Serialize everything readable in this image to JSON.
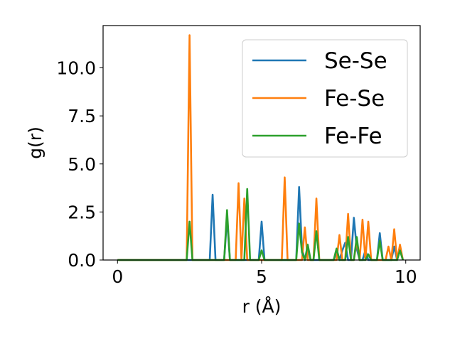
{
  "chart_data": {
    "type": "line",
    "title": "",
    "xlabel": "r (Å)",
    "ylabel": "g(r)",
    "xlim": [
      -0.5,
      10.5
    ],
    "ylim": [
      0.0,
      12.2
    ],
    "xticks": [
      0,
      5,
      10
    ],
    "xtick_labels": [
      "0",
      "5",
      "10"
    ],
    "yticks": [
      0.0,
      2.5,
      5.0,
      7.5,
      10.0
    ],
    "ytick_labels": [
      "0.0",
      "2.5",
      "5.0",
      "7.5",
      "10.0"
    ],
    "grid": false,
    "legend_position": "top-right",
    "series": [
      {
        "name": "Se-Se",
        "color": "#1f77b4",
        "x": [
          0,
          3.2,
          3.3,
          3.4,
          3.7,
          3.8,
          3.9,
          4.9,
          5.0,
          5.1,
          6.2,
          6.3,
          6.4,
          6.5,
          6.6,
          6.7,
          7.5,
          7.6,
          7.7,
          7.8,
          7.9,
          8.0,
          8.1,
          8.2,
          8.3,
          8.4,
          8.5,
          8.6,
          8.7,
          8.8,
          9.0,
          9.1,
          9.2,
          9.5,
          9.6,
          9.7,
          9.8,
          9.9
        ],
        "y": [
          0,
          0,
          3.4,
          0,
          0,
          2.2,
          0,
          0,
          2.0,
          0,
          0,
          3.8,
          0.6,
          0,
          0.6,
          0,
          0,
          0.4,
          0,
          0.5,
          0.9,
          0,
          0,
          2.2,
          0.6,
          0,
          0,
          0.5,
          0,
          0,
          0,
          1.4,
          0,
          0,
          0.7,
          0,
          0.7,
          0
        ]
      },
      {
        "name": "Fe-Se",
        "color": "#ff7f0e",
        "x": [
          0,
          2.4,
          2.5,
          2.6,
          4.1,
          4.2,
          4.3,
          4.4,
          4.5,
          4.6,
          5.7,
          5.8,
          5.9,
          6.0,
          6.4,
          6.5,
          6.6,
          6.8,
          6.9,
          7.0,
          7.6,
          7.7,
          7.8,
          7.9,
          8.0,
          8.1,
          8.2,
          8.3,
          8.4,
          8.5,
          8.6,
          8.7,
          8.8,
          8.9,
          9.3,
          9.4,
          9.5,
          9.6,
          9.7,
          9.8,
          9.9
        ],
        "y": [
          0,
          0,
          11.7,
          0,
          0,
          4.0,
          0,
          3.2,
          0,
          0,
          0,
          4.3,
          0,
          0,
          0,
          1.7,
          0,
          0,
          3.2,
          0,
          0,
          1.3,
          0,
          0,
          2.4,
          0,
          0,
          1.0,
          0,
          2.1,
          0,
          2.0,
          0,
          0,
          0,
          0.7,
          0,
          1.6,
          0,
          0.8,
          0
        ]
      },
      {
        "name": "Fe-Fe",
        "color": "#2ca02c",
        "x": [
          0,
          2.4,
          2.5,
          2.6,
          3.7,
          3.8,
          3.9,
          4.4,
          4.5,
          4.6,
          4.9,
          5.0,
          5.1,
          6.2,
          6.3,
          6.4,
          6.5,
          6.6,
          6.7,
          6.8,
          6.9,
          7.0,
          7.1,
          7.5,
          7.6,
          7.7,
          7.8,
          7.9,
          8.0,
          8.1,
          8.2,
          8.3,
          8.4,
          8.6,
          8.7,
          8.8,
          9.0,
          9.1,
          9.2,
          9.7,
          9.8,
          9.9
        ],
        "y": [
          0,
          0,
          2.0,
          0,
          0,
          2.6,
          0,
          0,
          3.7,
          0,
          0,
          0.5,
          0,
          0,
          1.9,
          0.4,
          0,
          0.8,
          0,
          0,
          1.5,
          0,
          0,
          0,
          0.6,
          0,
          0,
          0,
          1.2,
          0,
          0,
          1.2,
          0,
          0,
          0.3,
          0,
          0,
          1.0,
          0,
          0,
          0.5,
          0
        ]
      }
    ]
  }
}
